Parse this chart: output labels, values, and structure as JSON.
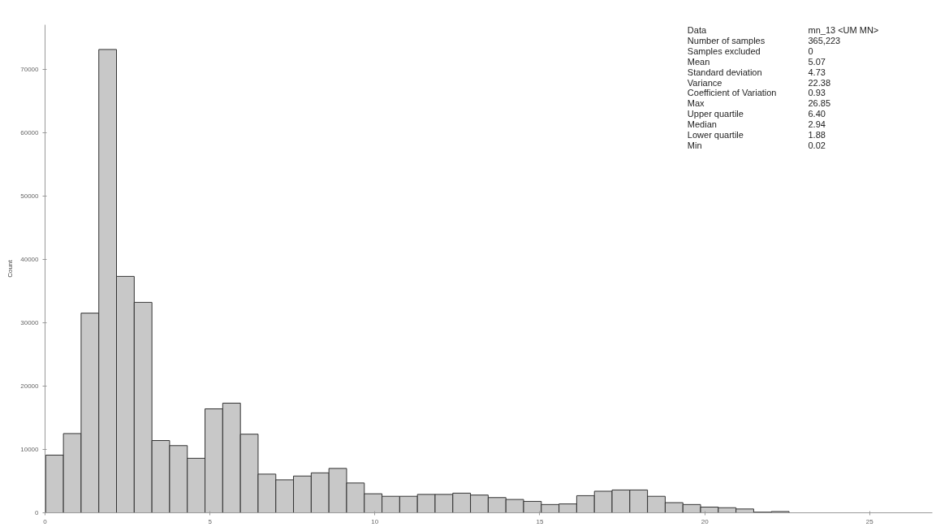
{
  "chart_data": {
    "type": "histogram",
    "ylabel": "Count",
    "bins": [
      0.02,
      0.557,
      1.093,
      1.63,
      2.166,
      2.703,
      3.24,
      3.776,
      4.313,
      4.849,
      5.386,
      5.923,
      6.459,
      6.996,
      7.532,
      8.069,
      8.606,
      9.142,
      9.679,
      10.215,
      10.752,
      11.289,
      11.825,
      12.362,
      12.898,
      13.435,
      13.972,
      14.508,
      15.045,
      15.581,
      16.118,
      16.655,
      17.191,
      17.728,
      18.264,
      18.801,
      19.338,
      19.874,
      20.411,
      20.947,
      21.484,
      22.021,
      22.557,
      23.094,
      23.63,
      24.167,
      24.704,
      25.24,
      25.777,
      26.313,
      26.85
    ],
    "values": [
      9100,
      12500,
      31500,
      73100,
      37300,
      33200,
      11400,
      10600,
      8600,
      16400,
      17300,
      12400,
      6100,
      5200,
      5800,
      6300,
      7000,
      4700,
      3000,
      2600,
      2600,
      2900,
      2900,
      3100,
      2800,
      2400,
      2100,
      1800,
      1300,
      1400,
      2700,
      3400,
      3600,
      3600,
      2600,
      1600,
      1300,
      900,
      800,
      600,
      100,
      200,
      0,
      0,
      0,
      0,
      0,
      0,
      0,
      0
    ],
    "color": "#c8c8c8",
    "xlim": [
      0,
      26.9
    ],
    "ylim": [
      0,
      77000
    ],
    "xticks": [
      0,
      5,
      10,
      15,
      20,
      25
    ],
    "yticks": [
      0,
      10000,
      20000,
      30000,
      40000,
      50000,
      60000,
      70000
    ],
    "grid": false,
    "annotations": [
      "Data",
      "mn_13 <UM MN>",
      "Number of samples",
      "365,223",
      "Samples excluded",
      "0",
      "Mean",
      "5.07",
      "Standard deviation",
      "4.73",
      "Variance",
      "22.38",
      "Coefficient of Variation",
      "0.93",
      "Max",
      "26.85",
      "Upper quartile",
      "6.40",
      "Median",
      "2.94",
      "Lower quartile",
      "1.88",
      "Min",
      "0.02"
    ]
  }
}
